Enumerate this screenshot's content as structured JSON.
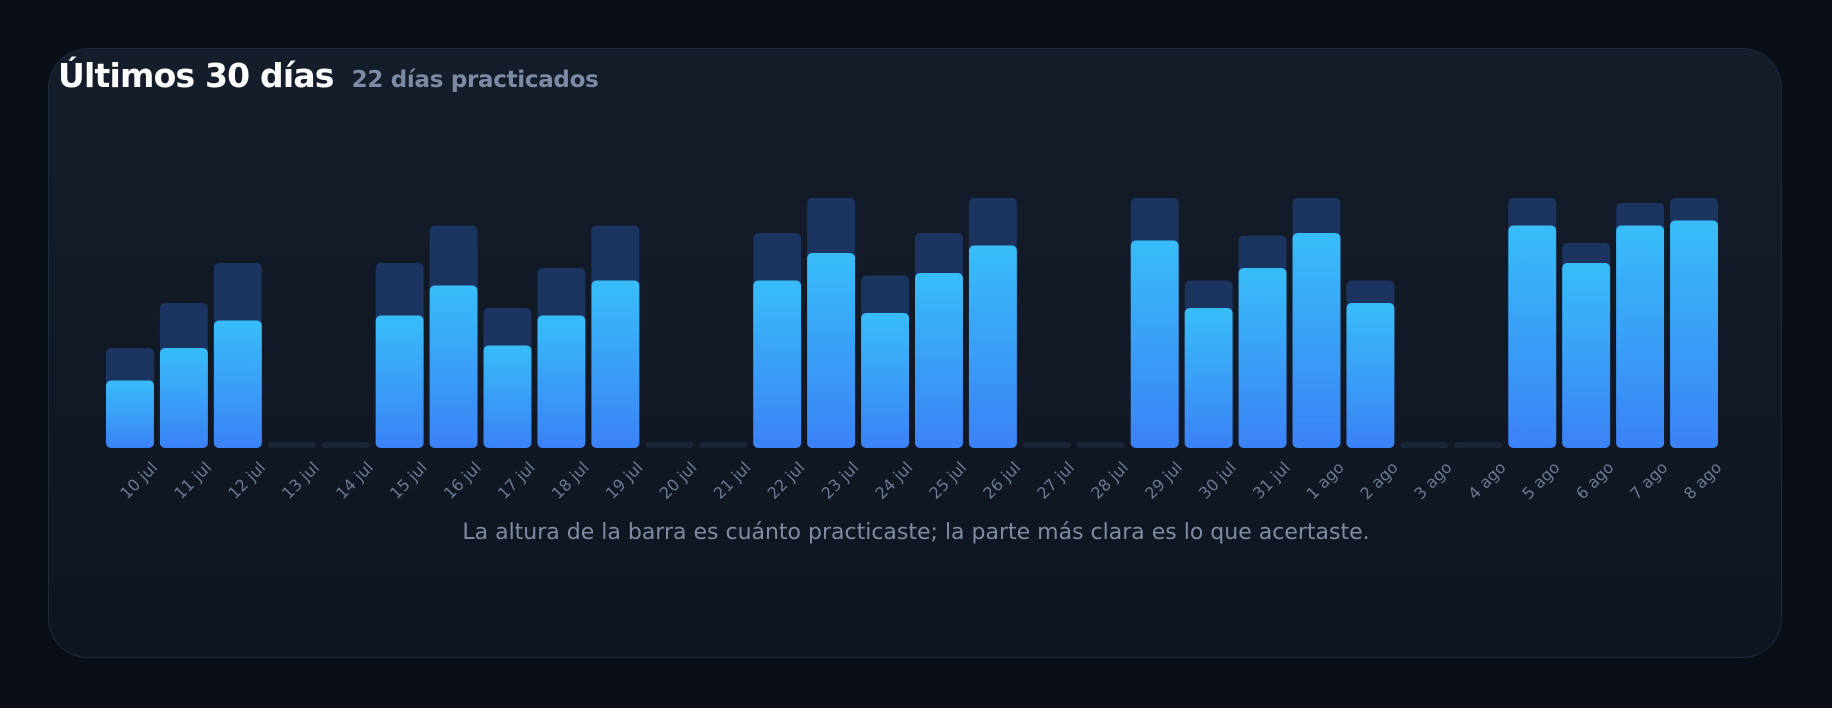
{
  "header": {
    "title": "Últimos 30 días",
    "subtitle": "22 días practicados"
  },
  "caption": "La altura de la barra es cuánto practicaste; la parte más clara es lo que acertaste.",
  "colors": {
    "background": "#0a0e17",
    "card": "#131a27",
    "practiced": "#1c3460",
    "correct_top": "#38bdf8",
    "correct_bottom": "#3b82f6",
    "empty_day": "#1a2538"
  },
  "chart_data": {
    "type": "bar",
    "stacked": "overlay",
    "title": "Últimos 30 días",
    "subtitle": "22 días practicados",
    "categories": [
      "10 jul",
      "11 jul",
      "12 jul",
      "13 jul",
      "14 jul",
      "15 jul",
      "16 jul",
      "17 jul",
      "18 jul",
      "19 jul",
      "20 jul",
      "21 jul",
      "22 jul",
      "23 jul",
      "24 jul",
      "25 jul",
      "26 jul",
      "27 jul",
      "28 jul",
      "29 jul",
      "30 jul",
      "31 jul",
      "1 ago",
      "2 ago",
      "3 ago",
      "4 ago",
      "5 ago",
      "6 ago",
      "7 ago",
      "8 ago"
    ],
    "series": [
      {
        "values": [
          40,
          58,
          74,
          0,
          0,
          74,
          89,
          56,
          72,
          89,
          0,
          0,
          86,
          100,
          69,
          86,
          100,
          0,
          0,
          100,
          67,
          85,
          100,
          67,
          0,
          0,
          100,
          82,
          98,
          100
        ]
      },
      {
        "values": [
          27,
          40,
          51,
          0,
          0,
          53,
          65,
          41,
          53,
          67,
          0,
          0,
          67,
          78,
          54,
          70,
          81,
          0,
          0,
          83,
          56,
          72,
          86,
          58,
          0,
          0,
          89,
          74,
          89,
          91
        ]
      }
    ],
    "ylim": [
      0,
      100
    ],
    "grid": false,
    "legend": "none"
  }
}
